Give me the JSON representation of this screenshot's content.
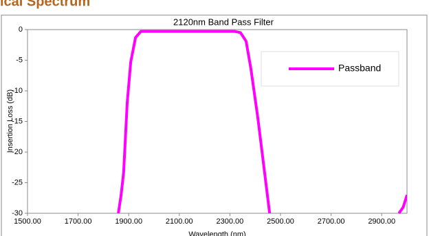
{
  "heading": "ical Spectrum",
  "chart_data": {
    "type": "line",
    "title": "2120nm Band Pass Filter",
    "x_label": "Wavelength (nm)",
    "y_label": "Insertion Loss (dB)",
    "x": [
      1859,
      1870,
      1880,
      1894,
      1908,
      1927,
      1948,
      2100,
      2200,
      2320,
      2342,
      2364,
      2383,
      2410,
      2437,
      2457,
      2700,
      2968,
      2985,
      3000
    ],
    "series": [
      {
        "name": "Passband",
        "color": "#ff00ff",
        "values": [
          -30,
          -27,
          -23.3,
          -12,
          -5.3,
          -1.3,
          -0.3,
          -0.3,
          -0.3,
          -0.3,
          -0.5,
          -1.9,
          -6.4,
          -14.3,
          -23.3,
          -30,
          null,
          -30,
          -29,
          -27
        ]
      }
    ],
    "xlim": [
      1500,
      3000
    ],
    "xticks": [
      {
        "value": 1500,
        "label": "1500.00"
      },
      {
        "value": 1700,
        "label": "1700.00"
      },
      {
        "value": 1900,
        "label": "1900.00"
      },
      {
        "value": 2100,
        "label": "2100.00"
      },
      {
        "value": 2300,
        "label": "2300.00"
      },
      {
        "value": 2500,
        "label": "2500.00"
      },
      {
        "value": 2700,
        "label": "2700.00"
      },
      {
        "value": 2900,
        "label": "2900.00"
      }
    ],
    "ylim": [
      -30,
      0
    ],
    "yticks": [
      0,
      -5,
      -10,
      -15,
      -20,
      -25,
      -30
    ],
    "grid": false,
    "legend": "upper right"
  }
}
